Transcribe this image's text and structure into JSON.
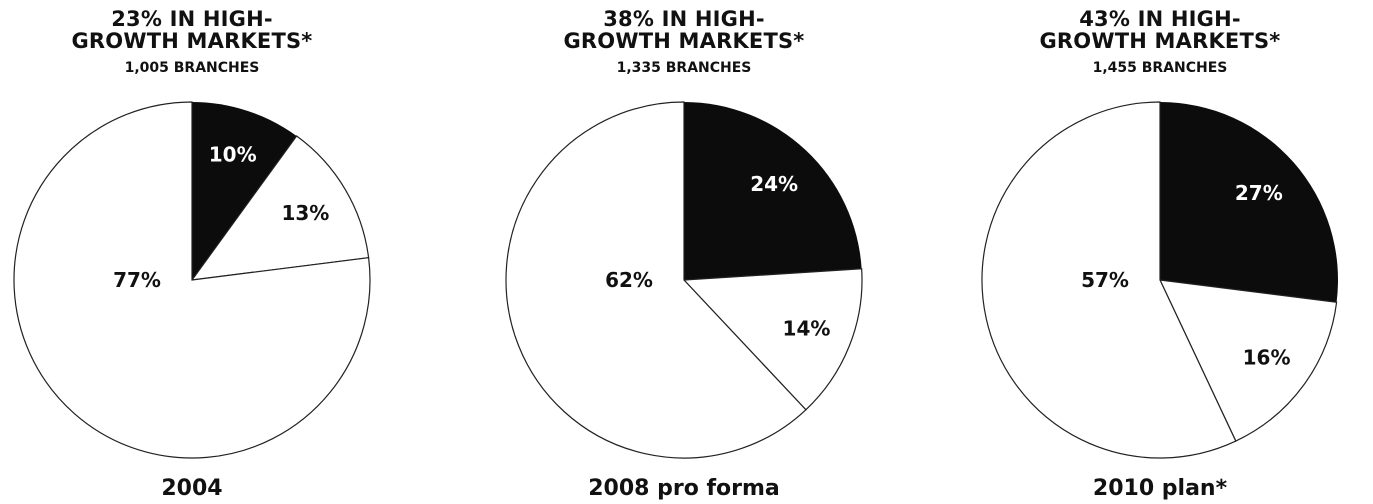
{
  "colors": {
    "dark_slice": "#0c0c0c",
    "light_slice": "#ffffff",
    "outline": "#222222"
  },
  "chart_data": [
    {
      "type": "pie",
      "title_lines": [
        "23% IN HIGH-",
        "GROWTH MARKETS*"
      ],
      "subtitle": "1,005 BRANCHES",
      "xlabel": "2004",
      "slices": [
        {
          "label": "10%",
          "value": 10,
          "fill": "dark"
        },
        {
          "label": "13%",
          "value": 13,
          "fill": "light"
        },
        {
          "label": "77%",
          "value": 77,
          "fill": "light"
        }
      ]
    },
    {
      "type": "pie",
      "title_lines": [
        "38% IN HIGH-",
        "GROWTH MARKETS*"
      ],
      "subtitle": "1,335 BRANCHES",
      "xlabel": "2008 pro forma",
      "slices": [
        {
          "label": "24%",
          "value": 24,
          "fill": "dark"
        },
        {
          "label": "14%",
          "value": 14,
          "fill": "light"
        },
        {
          "label": "62%",
          "value": 62,
          "fill": "light"
        }
      ]
    },
    {
      "type": "pie",
      "title_lines": [
        "43% IN HIGH-",
        "GROWTH MARKETS*"
      ],
      "subtitle": "1,455 BRANCHES",
      "xlabel": "2010 plan*",
      "slices": [
        {
          "label": "27%",
          "value": 27,
          "fill": "dark"
        },
        {
          "label": "16%",
          "value": 16,
          "fill": "light"
        },
        {
          "label": "57%",
          "value": 57,
          "fill": "light"
        }
      ]
    }
  ]
}
